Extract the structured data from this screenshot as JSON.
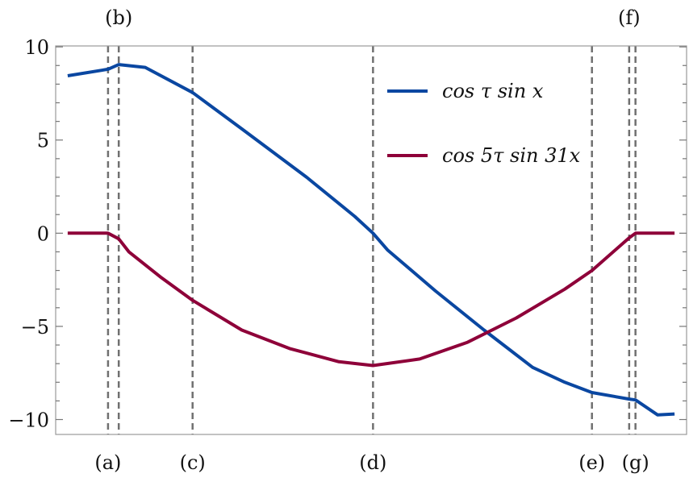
{
  "chart_data": {
    "type": "line",
    "title": "",
    "xlabel": "",
    "ylabel": "",
    "xlim": [
      0,
      100
    ],
    "ylim": [
      -10.8,
      10.05
    ],
    "x_tick_labels_shown": false,
    "y_ticks": [
      -10,
      -5,
      0,
      5,
      10
    ],
    "y_tick_labels": [
      "−10",
      "−5",
      "0",
      "5",
      "10"
    ],
    "y_minor_step": 1,
    "grid": false,
    "legend_position": "top-right",
    "series": [
      {
        "name": "cos τ sin x",
        "color": "#0a47a1",
        "x": [
          1.9,
          8.3,
          10.0,
          14.2,
          21.7,
          29.5,
          39.8,
          47.4,
          50.3,
          52.6,
          60.2,
          67.9,
          75.6,
          80.7,
          85.0,
          90.9,
          91.9,
          95.4,
          98.1
        ],
        "y": [
          8.45,
          8.8,
          9.05,
          8.9,
          7.55,
          5.6,
          3.0,
          0.9,
          0.0,
          -0.9,
          -3.1,
          -5.2,
          -7.2,
          -8.0,
          -8.55,
          -8.9,
          -8.95,
          -9.75,
          -9.7
        ]
      },
      {
        "name": "cos 5τ sin 31x",
        "color": "#8e0039",
        "x": [
          1.9,
          8.3,
          10.0,
          11.6,
          16.8,
          21.7,
          29.5,
          37.2,
          44.9,
          50.3,
          57.7,
          65.3,
          73.0,
          80.7,
          85.0,
          90.9,
          91.9,
          98.1
        ],
        "y": [
          0,
          0,
          -0.3,
          -1.0,
          -2.4,
          -3.6,
          -5.2,
          -6.2,
          -6.9,
          -7.1,
          -6.75,
          -5.85,
          -4.55,
          -3.0,
          -2.0,
          -0.25,
          0,
          0
        ]
      }
    ],
    "markers": [
      {
        "label": "(a)",
        "x": 8.3,
        "label_side": "bottom"
      },
      {
        "label": "(b)",
        "x": 10.0,
        "label_side": "top"
      },
      {
        "label": "(c)",
        "x": 21.7,
        "label_side": "bottom"
      },
      {
        "label": "(d)",
        "x": 50.3,
        "label_side": "bottom"
      },
      {
        "label": "(e)",
        "x": 85.0,
        "label_side": "bottom"
      },
      {
        "label": "(f)",
        "x": 90.9,
        "label_side": "top"
      },
      {
        "label": "(g)",
        "x": 91.9,
        "label_side": "bottom"
      }
    ],
    "marker_line_color": "#707070"
  }
}
